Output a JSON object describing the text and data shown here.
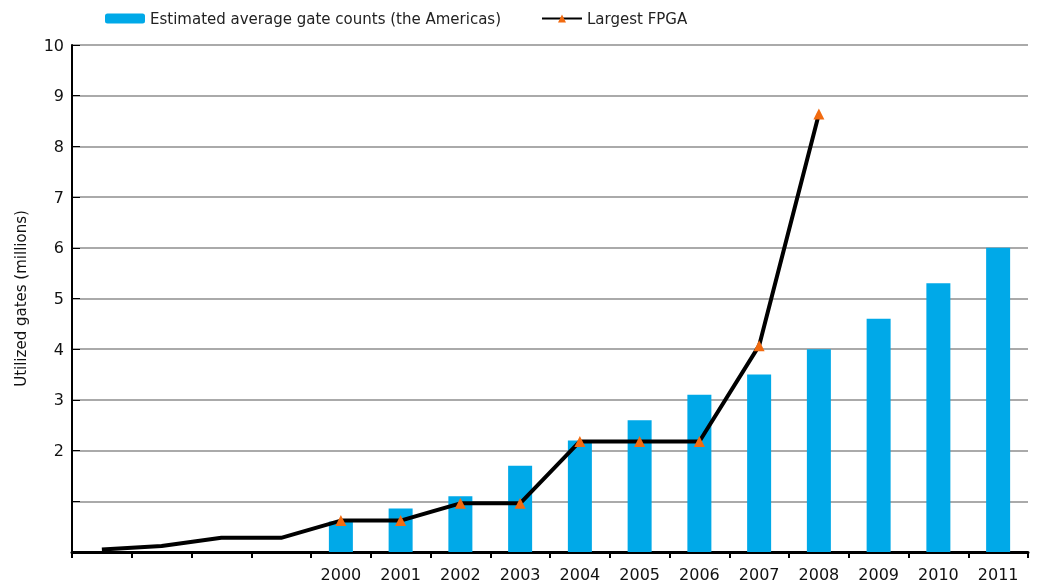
{
  "chart_data": {
    "type": "bar",
    "ylabel": "Utilized gates (millions)",
    "categories": [
      null,
      null,
      null,
      null,
      "2000",
      "2001",
      "2002",
      "2003",
      "2004",
      "2005",
      "2006",
      "2007",
      "2008",
      "2009",
      "2010",
      "2011"
    ],
    "series": [
      {
        "name": "Estimated average gate counts (the Americas)",
        "color": "#00a9e8",
        "values": [
          null,
          null,
          null,
          null,
          0.6,
          0.86,
          1.1,
          1.7,
          2.2,
          2.6,
          3.1,
          3.5,
          4.0,
          4.6,
          5.3,
          6.0
        ]
      },
      {
        "name": "Largest FPGA",
        "type": "line",
        "color": "#000000",
        "colors": [
          null,
          null,
          null,
          null,
          "#f26b10",
          "#f26b10",
          "#f26b10",
          "#f26b10",
          "#f26b10",
          "#f26b10",
          "#f26b10",
          "#f26b10",
          "#f26b10",
          null,
          null,
          null
        ],
        "values": [
          0.05,
          0.12,
          0.28,
          0.28,
          0.62,
          0.62,
          0.96,
          0.96,
          2.18,
          2.18,
          2.18,
          4.07,
          8.64,
          null,
          null,
          null
        ]
      }
    ],
    "ylim": [
      0,
      10
    ],
    "yticks": [
      {
        "value": 0,
        "label": null
      },
      {
        "value": 1,
        "label": null
      },
      2,
      3,
      4,
      5,
      6,
      7,
      8,
      9,
      10
    ],
    "grid": "y",
    "legend": "top",
    "marker": "triangle"
  }
}
